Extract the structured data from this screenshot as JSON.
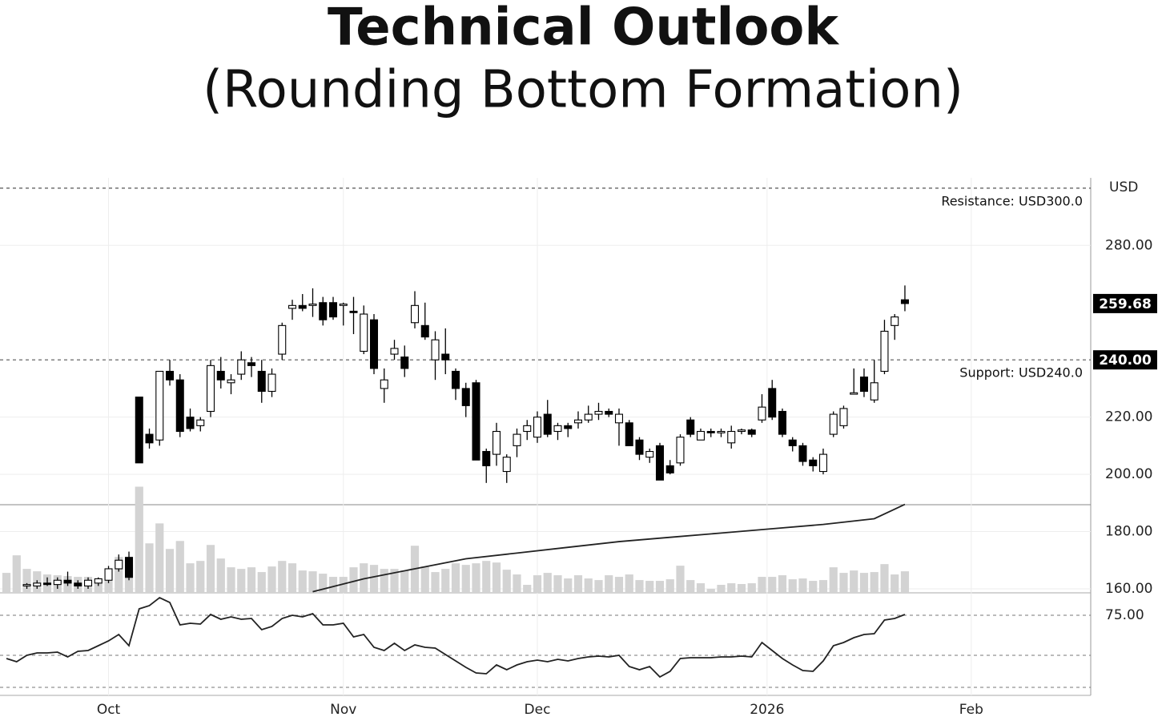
{
  "chart_data": {
    "type": "candlestick",
    "title": "Technical Outlook",
    "subtitle": "(Rounding Bottom Formation)",
    "y_axis_label": "USD",
    "x": [
      0,
      1,
      2,
      3,
      4,
      5,
      6,
      7,
      8,
      9,
      10,
      11,
      12,
      13,
      14,
      15,
      16,
      17,
      18,
      19,
      20,
      21,
      22,
      23,
      24,
      25,
      26,
      27,
      28,
      29,
      30,
      31,
      32,
      33,
      34,
      35,
      36,
      37,
      38,
      39,
      40,
      41,
      42,
      43,
      44,
      45,
      46,
      47,
      48,
      49,
      50,
      51,
      52,
      53,
      54,
      55,
      56,
      57,
      58,
      59,
      60,
      61,
      62,
      63,
      64,
      65,
      66,
      67,
      68,
      69,
      70,
      71,
      72,
      73,
      74,
      75,
      76,
      77,
      78,
      79,
      80,
      81,
      82,
      83,
      84,
      85,
      86,
      87,
      88
    ],
    "open": [
      null,
      null,
      161,
      161,
      162,
      161.5,
      163,
      162,
      161,
      162,
      163,
      167,
      171,
      227,
      214,
      212,
      236,
      233,
      220,
      217,
      222,
      236,
      232,
      235,
      239,
      236,
      229,
      242,
      258,
      259,
      259,
      260,
      260,
      259,
      257,
      243,
      254,
      230,
      242,
      241,
      253,
      252,
      240,
      242,
      236,
      230,
      232,
      208,
      207,
      201,
      210,
      215,
      213,
      221,
      215,
      217,
      218,
      219,
      221,
      222,
      218,
      218,
      212,
      206,
      210,
      203,
      204,
      219,
      212,
      215,
      214.5,
      211,
      215,
      215.5,
      219,
      230,
      222,
      212,
      210,
      205,
      201,
      214,
      217,
      228,
      234,
      226,
      236,
      252,
      261
    ],
    "high": [
      null,
      null,
      162,
      163,
      164,
      164,
      166,
      163,
      164,
      164,
      168,
      172,
      173,
      227,
      216,
      236,
      240,
      235,
      223,
      220,
      240,
      241,
      235,
      243,
      241,
      240,
      237,
      253,
      261,
      263,
      265,
      262,
      262,
      260,
      262,
      259,
      256,
      237,
      247,
      245,
      264,
      260,
      250,
      251,
      237,
      232,
      233,
      209,
      218,
      207,
      216,
      219,
      222,
      226,
      218,
      218,
      222,
      224,
      225,
      223,
      223,
      219,
      213,
      209,
      211,
      205,
      214,
      220,
      216,
      216,
      216,
      217,
      216,
      216,
      228,
      233,
      223,
      213,
      211,
      206,
      209,
      222,
      224,
      237,
      237,
      240,
      254,
      256,
      266
    ],
    "low": [
      null,
      null,
      160,
      160,
      161,
      160,
      161,
      160,
      160,
      161,
      162,
      166,
      163,
      204,
      209,
      210,
      231,
      213,
      215,
      215,
      220,
      230,
      228,
      233,
      234,
      225,
      227,
      240,
      254,
      257,
      255,
      252,
      254,
      252,
      249,
      242,
      235,
      225,
      240,
      234,
      251,
      247,
      233,
      235,
      226,
      220,
      205,
      197,
      203,
      197,
      206,
      212,
      211,
      213,
      212,
      213,
      216,
      218,
      219,
      220,
      210,
      210,
      205,
      204,
      198,
      200,
      203,
      213,
      212,
      213,
      213,
      209,
      214,
      213,
      218,
      219,
      213,
      208,
      203,
      201,
      200,
      213,
      216,
      228,
      227,
      225,
      235,
      247,
      257
    ],
    "close": [
      null,
      null,
      161.5,
      162,
      161.5,
      163,
      162,
      161,
      163,
      163.5,
      167,
      170,
      164,
      204,
      211,
      236,
      233,
      215,
      216,
      219,
      238,
      233,
      233,
      240,
      238,
      229,
      235,
      252,
      259,
      258,
      259.5,
      254,
      255,
      259.5,
      256.5,
      256,
      237,
      233,
      244,
      237,
      259,
      248,
      247,
      240,
      230,
      224,
      205,
      203,
      215,
      206,
      214,
      217,
      220,
      214,
      217,
      216,
      219,
      221,
      222,
      221,
      221,
      210,
      207,
      208,
      198,
      200.5,
      213,
      214,
      215,
      214.5,
      215,
      215,
      215.5,
      214,
      223.5,
      220,
      214,
      210,
      204.5,
      203,
      207,
      221,
      223,
      228.5,
      229,
      232,
      250,
      255,
      259.68
    ],
    "up_color": "#ffffff",
    "down_color": "#000000",
    "xlim": [
      -0.63,
      106.2
    ],
    "xticks": [
      {
        "value": 10,
        "label": "Oct"
      },
      {
        "value": 33,
        "label": "Nov"
      },
      {
        "value": 52,
        "label": "Dec"
      },
      {
        "value": 74.5,
        "label": "2026"
      },
      {
        "value": 94.5,
        "label": "Feb"
      }
    ],
    "ylim": [
      158.6,
      303.6
    ],
    "yticks": [
      {
        "value": 160,
        "label": "160.00"
      },
      {
        "value": 180,
        "label": "180.00"
      },
      {
        "value": 200,
        "label": "200.00"
      },
      {
        "value": 220,
        "label": "220.00"
      },
      {
        "value": 280,
        "label": "280.00"
      }
    ],
    "grid": true,
    "last_price": 259.68,
    "reference_lines": [
      {
        "value": 300,
        "label": "Resistance: USD300.0"
      },
      {
        "value": 240,
        "label": "Support: USD240.0",
        "axis_label": "240.00"
      }
    ],
    "moving_average": {
      "x": [
        30,
        35,
        40,
        45,
        50,
        55,
        60,
        65,
        70,
        75,
        80,
        85,
        88
      ],
      "values": [
        159,
        163.5,
        167,
        170.5,
        172.5,
        174.5,
        176.5,
        178,
        179.5,
        181,
        182.5,
        184.5,
        189.5
      ],
      "color": "#222222"
    },
    "volume": {
      "color": "#d3d3d3",
      "ylim": [
        0,
        520
      ],
      "values": [
        25,
        47,
        30,
        27,
        23,
        22,
        21,
        20,
        20,
        16,
        15,
        45,
        35,
        133,
        62,
        87,
        55,
        65,
        37,
        40,
        60,
        43,
        32,
        30,
        32,
        26,
        33,
        40,
        37,
        28,
        27,
        24,
        20,
        20,
        32,
        37,
        35,
        30,
        30,
        28,
        59,
        33,
        26,
        30,
        37,
        35,
        37,
        40,
        38,
        29,
        23,
        10,
        22,
        25,
        22,
        18,
        22,
        18,
        16,
        22,
        20,
        23,
        16,
        15,
        15,
        17,
        34,
        16,
        12,
        5,
        10,
        12,
        11,
        12,
        20,
        20,
        22,
        17,
        18,
        15,
        16,
        32,
        25,
        28,
        25,
        26,
        36,
        23,
        27
      ]
    },
    "rsi": {
      "color": "#222222",
      "ylim": [
        25,
        89
      ],
      "yticks": [
        {
          "value": 75,
          "label": "75.00"
        }
      ],
      "guides": [
        75,
        50,
        30
      ],
      "values": [
        48,
        46,
        50,
        51.5,
        51.5,
        52,
        49,
        52.5,
        53,
        56,
        59,
        63,
        56,
        79,
        81,
        86,
        83,
        69,
        70,
        69.5,
        75.5,
        72.5,
        74,
        72.5,
        73,
        66,
        68,
        73,
        75,
        74,
        76,
        69,
        69,
        70,
        61.5,
        63,
        55,
        53,
        57.5,
        53,
        56.5,
        55,
        54.5,
        50.5,
        46.5,
        42.5,
        39,
        38.5,
        44,
        41,
        44,
        46,
        47,
        46,
        47.5,
        46.5,
        48,
        49,
        49.5,
        49,
        50,
        43,
        41,
        43,
        36.5,
        40,
        48,
        48.5,
        48.5,
        48.5,
        49,
        49,
        49.5,
        49,
        58,
        53,
        48,
        44,
        40.5,
        40,
        46.5,
        56,
        58,
        61,
        63,
        63.5,
        72,
        73,
        75.5
      ]
    }
  }
}
